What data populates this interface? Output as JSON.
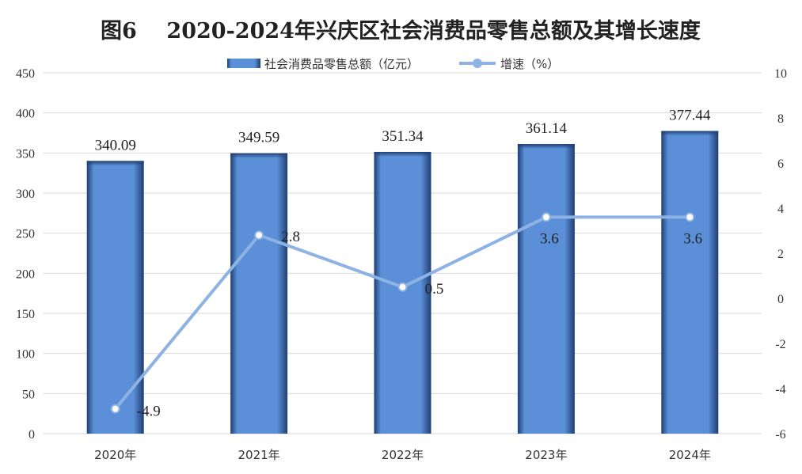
{
  "title": "图6    2020-2024年兴庆区社会消费品零售总额及其增长速度",
  "legend": {
    "bar_label": "社会消费品零售总额（亿元）",
    "line_label": "增速（%）"
  },
  "colors": {
    "bar_light": "#5b8fd8",
    "bar_dark": "#1f3f73",
    "line": "#8eb2e3",
    "marker_fill": "#ffffff",
    "grid": "#d9d9d9"
  },
  "chart_data": {
    "type": "bar",
    "categories": [
      "2020年",
      "2021年",
      "2022年",
      "2023年",
      "2024年"
    ],
    "series": [
      {
        "name": "社会消费品零售总额（亿元）",
        "type": "bar",
        "axis": "left",
        "values": [
          340.09,
          349.59,
          351.34,
          361.14,
          377.44
        ]
      },
      {
        "name": "增速（%）",
        "type": "line",
        "axis": "right",
        "values": [
          -4.9,
          2.8,
          0.5,
          3.6,
          3.6
        ]
      }
    ],
    "bar_labels": [
      "340.09",
      "349.59",
      "351.34",
      "361.14",
      "377.44"
    ],
    "line_labels": [
      "-4.9",
      "2.8",
      "0.5",
      "3.6",
      "3.6"
    ],
    "ylim": [
      0,
      450
    ],
    "y2lim": [
      -6,
      10
    ],
    "yticks": [
      "0",
      "50",
      "100",
      "150",
      "200",
      "250",
      "300",
      "350",
      "400",
      "450"
    ],
    "y2ticks": [
      "-6",
      "-4",
      "-2",
      "0",
      "2",
      "4",
      "6",
      "8",
      "10"
    ],
    "grid": true,
    "legend_position": "top"
  }
}
